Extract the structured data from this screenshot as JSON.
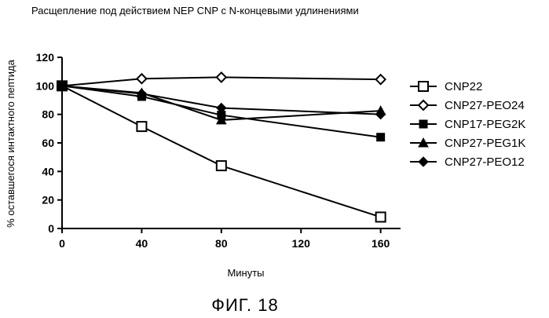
{
  "chart_data": {
    "type": "line",
    "title": "Расщепление под действием NEP CNP с N-концевыми удлинениями",
    "xlabel": "Минуты",
    "ylabel": "% оставшегося интактного пептида",
    "xlim": [
      0,
      170
    ],
    "ylim": [
      0,
      120
    ],
    "x_ticks": [
      0,
      40,
      80,
      120,
      160
    ],
    "y_ticks": [
      0,
      20,
      40,
      60,
      80,
      100,
      120
    ],
    "grid": false,
    "legend_position": "right",
    "x": [
      0,
      40,
      80,
      160
    ],
    "series": [
      {
        "name": "CNP22",
        "marker": "open-square",
        "values": [
          100,
          71.5,
          44,
          8
        ]
      },
      {
        "name": "CNP27-PEO24",
        "marker": "open-diamond",
        "values": [
          100,
          105,
          106,
          104.5
        ]
      },
      {
        "name": "CNP17-PEG2K",
        "marker": "filled-square",
        "values": [
          100,
          92.5,
          79.5,
          64
        ]
      },
      {
        "name": "CNP27-PEG1K",
        "marker": "filled-triangle",
        "values": [
          100,
          95,
          76,
          82.5
        ]
      },
      {
        "name": "CNP27-PEO12",
        "marker": "filled-diamond",
        "values": [
          100,
          94.5,
          84.5,
          80
        ]
      }
    ]
  },
  "figure_label": "ФИГ. 18"
}
